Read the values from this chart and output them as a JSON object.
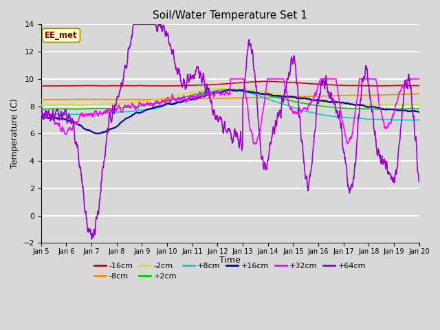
{
  "title": "Soil/Water Temperature Set 1",
  "xlabel": "Time",
  "ylabel": "Temperature (C)",
  "xlim": [
    0,
    15
  ],
  "ylim": [
    -2,
    14
  ],
  "yticks": [
    -2,
    0,
    2,
    4,
    6,
    8,
    10,
    12,
    14
  ],
  "xtick_labels": [
    "Jan 5",
    "Jan 6",
    "Jan 7",
    "Jan 8",
    "Jan 9",
    "Jan 10",
    "Jan 11",
    "Jan 12",
    "Jan 13",
    "Jan 14",
    "Jan 15",
    "Jan 16",
    "Jan 17",
    "Jan 18",
    "Jan 19",
    "Jan 20"
  ],
  "background_color": "#d8d8d8",
  "plot_bg": "#d8d8d8",
  "grid_color": "#ffffff",
  "annotation_text": "EE_met",
  "annotation_box_color": "#ffffcc",
  "annotation_text_color": "#800000",
  "series": {
    "-16cm": {
      "color": "#cc0000",
      "lw": 1.2
    },
    "-8cm": {
      "color": "#ff8800",
      "lw": 1.2
    },
    "-2cm": {
      "color": "#dddd00",
      "lw": 1.2
    },
    "+2cm": {
      "color": "#00cc00",
      "lw": 1.2
    },
    "+8cm": {
      "color": "#00cccc",
      "lw": 1.2
    },
    "+16cm": {
      "color": "#0000aa",
      "lw": 1.5
    },
    "+32cm": {
      "color": "#ff00ff",
      "lw": 1.2
    },
    "+64cm": {
      "color": "#9900cc",
      "lw": 1.2
    }
  }
}
